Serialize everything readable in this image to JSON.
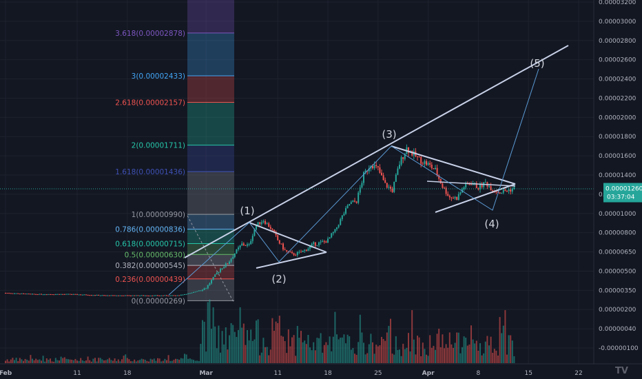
{
  "chart_data": {
    "type": "candlestick",
    "title": "",
    "xlabel": "",
    "ylabel": "",
    "x_ticks": [
      {
        "label": "Feb",
        "day": 1
      },
      {
        "label": "11",
        "day": 11
      },
      {
        "label": "18",
        "day": 18
      },
      {
        "label": "Mar",
        "day": 29
      },
      {
        "label": "11",
        "day": 39
      },
      {
        "label": "18",
        "day": 46
      },
      {
        "label": "25",
        "day": 53
      },
      {
        "label": "Apr",
        "day": 60
      },
      {
        "label": "8",
        "day": 67
      },
      {
        "label": "15",
        "day": 74
      },
      {
        "label": "22",
        "day": 81
      }
    ],
    "y_ticks": [
      "0.00003200",
      "0.00003000",
      "0.00002800",
      "0.00002600",
      "0.00002400",
      "0.00002200",
      "0.00002000",
      "0.00001800",
      "0.00001600",
      "0.00001400",
      "0.00001200",
      "0.00001000",
      "0.00000800",
      "0.00000650",
      "0.00000500",
      "0.00000350",
      "0.00000200",
      "0.00000040",
      "-0.00000100"
    ],
    "last_price": {
      "value": "0.00001260",
      "countdown": "03:37:04",
      "color": "#26a69a"
    },
    "fib_levels": [
      {
        "label": "3.618(0.00002878)",
        "color": "#7e57c2"
      },
      {
        "label": "3(0.00002433)",
        "color": "#42a5f5"
      },
      {
        "label": "2.618(0.00002157)",
        "color": "#ef5350"
      },
      {
        "label": "2(0.00001711)",
        "color": "#26c6a9"
      },
      {
        "label": "1.618(0.00001436)",
        "color": "#3f51b5"
      },
      {
        "label": "1(0.00000990)",
        "color": "#9598a1"
      },
      {
        "label": "0.786(0.00000836)",
        "color": "#64b5f6"
      },
      {
        "label": "0.618(0.00000715)",
        "color": "#26c6a9"
      },
      {
        "label": "0.5(0.00000630)",
        "color": "#66bb6a"
      },
      {
        "label": "0.382(0.00000545)",
        "color": "#b2b5be"
      },
      {
        "label": "0.236(0.00000439)",
        "color": "#ef5350"
      },
      {
        "label": "0(0.00000269)",
        "color": "#9598a1"
      }
    ],
    "wave_labels": [
      "(1)",
      "(2)",
      "(3)",
      "(4)",
      "(5)"
    ],
    "price_path": [
      [
        1,
        3.3e-06
      ],
      [
        5,
        3.2e-06
      ],
      [
        10,
        3.2e-06
      ],
      [
        15,
        3.1e-06
      ],
      [
        20,
        3.1e-06
      ],
      [
        25,
        3.1e-06
      ],
      [
        27,
        3.3e-06
      ],
      [
        29,
        3.7e-06
      ],
      [
        31,
        5.2e-06
      ],
      [
        32,
        5.6e-06
      ],
      [
        33,
        6.4e-06
      ],
      [
        34,
        7.1e-06
      ],
      [
        35,
        7e-06
      ],
      [
        36,
        8.8e-06
      ],
      [
        37,
        9.3e-06
      ],
      [
        38,
        8.5e-06
      ],
      [
        39,
        7.4e-06
      ],
      [
        40,
        6.6e-06
      ],
      [
        41,
        6.3e-06
      ],
      [
        42,
        6.4e-06
      ],
      [
        43,
        6.7e-06
      ],
      [
        44,
        7.1e-06
      ],
      [
        45,
        7.2e-06
      ],
      [
        46,
        7.4e-06
      ],
      [
        47,
        8.2e-06
      ],
      [
        48,
        9.7e-06
      ],
      [
        49,
        1.1e-05
      ],
      [
        50,
        1.13e-05
      ],
      [
        51,
        1.4e-05
      ],
      [
        52,
        1.52e-05
      ],
      [
        53,
        1.46e-05
      ],
      [
        54,
        1.3e-05
      ],
      [
        55,
        1.24e-05
      ],
      [
        56,
        1.52e-05
      ],
      [
        57,
        1.68e-05
      ],
      [
        58,
        1.61e-05
      ],
      [
        59,
        1.55e-05
      ],
      [
        60,
        1.51e-05
      ],
      [
        61,
        1.45e-05
      ],
      [
        62,
        1.28e-05
      ],
      [
        63,
        1.17e-05
      ],
      [
        64,
        1.16e-05
      ],
      [
        65,
        1.28e-05
      ],
      [
        66,
        1.32e-05
      ],
      [
        67,
        1.27e-05
      ],
      [
        68,
        1.32e-05
      ],
      [
        69,
        1.25e-05
      ],
      [
        70,
        1.22e-05
      ],
      [
        71,
        1.24e-05
      ],
      [
        72,
        1.26e-05
      ]
    ],
    "colors": {
      "up": "#26a69a",
      "down": "#ef5350",
      "lines": "#c8d1e8",
      "background": "#131722"
    }
  },
  "watermark": {
    "icon": "tradingview-logo-icon"
  }
}
